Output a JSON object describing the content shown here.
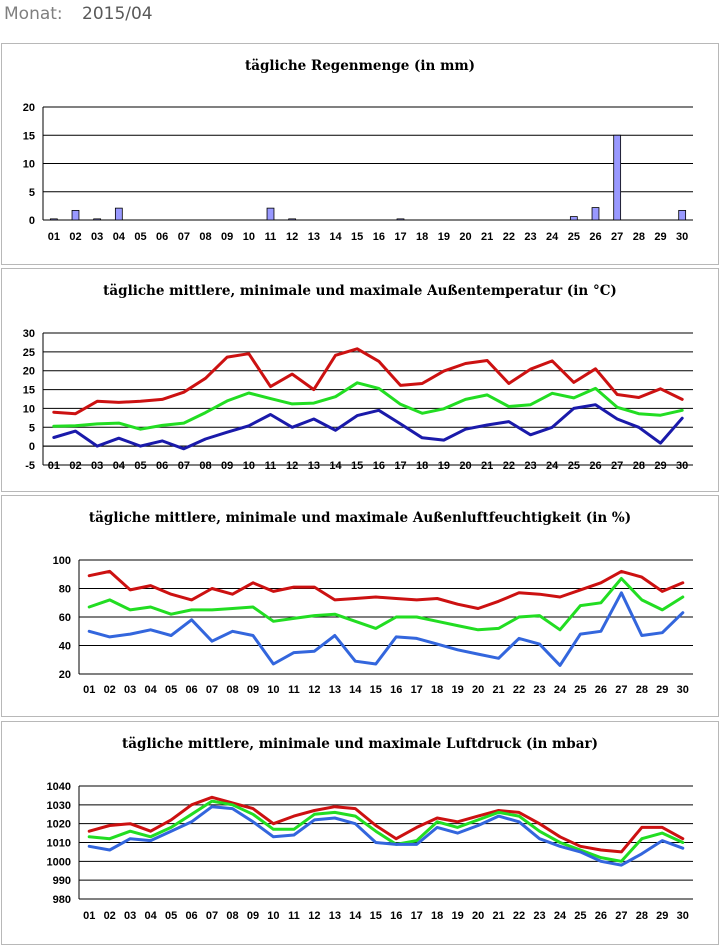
{
  "header": {
    "month_label": "Monat:",
    "month_value": "2015/04"
  },
  "chart_data": [
    {
      "type": "bar",
      "title": "tägliche Regenmenge (in mm)",
      "categories": [
        "01",
        "02",
        "03",
        "04",
        "05",
        "06",
        "07",
        "08",
        "09",
        "10",
        "11",
        "12",
        "13",
        "14",
        "15",
        "16",
        "17",
        "18",
        "19",
        "20",
        "21",
        "22",
        "23",
        "24",
        "25",
        "26",
        "27",
        "28",
        "29",
        "30"
      ],
      "series": [
        {
          "values": [
            0.2,
            1.7,
            0.2,
            2.1,
            0,
            0,
            0,
            0,
            0,
            0,
            2.1,
            0.2,
            0,
            0,
            0,
            0,
            0.2,
            0,
            0,
            0,
            0,
            0,
            0,
            0,
            0.6,
            2.2,
            15.0,
            0,
            0,
            1.7
          ],
          "color": "#9999ff"
        }
      ],
      "ylim": [
        0,
        20
      ],
      "yticks": [
        0,
        5,
        10,
        15,
        20
      ],
      "grid": true
    },
    {
      "type": "line",
      "title": "tägliche mittlere, minimale und maximale Außentemperatur (in °C)",
      "categories": [
        "01",
        "02",
        "03",
        "04",
        "05",
        "06",
        "07",
        "08",
        "09",
        "10",
        "11",
        "12",
        "13",
        "14",
        "15",
        "16",
        "17",
        "18",
        "19",
        "20",
        "21",
        "22",
        "23",
        "24",
        "25",
        "26",
        "27",
        "28",
        "29",
        "30"
      ],
      "series": [
        {
          "values": [
            9.0,
            8.6,
            11.9,
            11.6,
            11.9,
            12.4,
            14.3,
            18.0,
            23.6,
            24.5,
            15.8,
            19.1,
            15.0,
            24.1,
            25.8,
            22.5,
            16.1,
            16.6,
            19.9,
            21.9,
            22.7,
            16.6,
            20.4,
            22.6,
            16.9,
            20.5,
            13.7,
            12.9,
            15.2,
            12.4
          ],
          "color": "#cc1111"
        },
        {
          "values": [
            5.3,
            5.4,
            5.9,
            6.1,
            4.5,
            5.5,
            6.1,
            8.9,
            12.0,
            14.1,
            12.6,
            11.2,
            11.4,
            13.1,
            16.8,
            15.3,
            11.1,
            8.7,
            9.9,
            12.4,
            13.6,
            10.5,
            11.0,
            14.0,
            12.8,
            15.3,
            10.3,
            8.6,
            8.2,
            9.5
          ],
          "color": "#22dd22"
        },
        {
          "values": [
            2.3,
            4.0,
            0.0,
            2.1,
            0.0,
            1.4,
            -0.7,
            1.9,
            3.7,
            5.4,
            8.4,
            5.0,
            7.2,
            4.2,
            8.1,
            9.5,
            5.9,
            2.2,
            1.6,
            4.5,
            5.6,
            6.5,
            3.0,
            5.0,
            10.0,
            11.0,
            7.2,
            5.0,
            0.8,
            7.4
          ],
          "color": "#1a1aaa"
        }
      ],
      "ylim": [
        -5,
        30
      ],
      "yticks": [
        -5,
        0,
        5,
        10,
        15,
        20,
        25,
        30
      ],
      "grid": true
    },
    {
      "type": "line",
      "title": "tägliche mittlere, minimale und maximale Außenluftfeuchtigkeit (in %)",
      "categories": [
        "01",
        "02",
        "03",
        "04",
        "05",
        "06",
        "07",
        "08",
        "09",
        "10",
        "11",
        "12",
        "13",
        "14",
        "15",
        "16",
        "17",
        "18",
        "19",
        "20",
        "21",
        "22",
        "23",
        "24",
        "25",
        "26",
        "27",
        "28",
        "29",
        "30"
      ],
      "series": [
        {
          "values": [
            89,
            92,
            79,
            82,
            76,
            72,
            80,
            76,
            84,
            78,
            81,
            81,
            72,
            73,
            74,
            73,
            72,
            73,
            69,
            66,
            71,
            77,
            76,
            74,
            79,
            84,
            92,
            88,
            78,
            84
          ],
          "color": "#cc1111"
        },
        {
          "values": [
            67,
            72,
            65,
            67,
            62,
            65,
            65,
            66,
            67,
            57,
            59,
            61,
            62,
            57,
            52,
            60,
            60,
            57,
            54,
            51,
            52,
            60,
            61,
            51,
            68,
            70,
            87,
            72,
            65,
            74
          ],
          "color": "#22dd22"
        },
        {
          "values": [
            50,
            46,
            48,
            51,
            47,
            58,
            43,
            50,
            47,
            27,
            35,
            36,
            47,
            29,
            27,
            46,
            45,
            41,
            37,
            34,
            31,
            45,
            41,
            26,
            48,
            50,
            77,
            47,
            49,
            63
          ],
          "color": "#3366dd"
        }
      ],
      "ylim": [
        20,
        100
      ],
      "yticks": [
        20,
        40,
        60,
        80,
        100
      ],
      "grid": true
    },
    {
      "type": "line",
      "title": "tägliche mittlere, minimale und maximale Luftdruck (in mbar)",
      "categories": [
        "01",
        "02",
        "03",
        "04",
        "05",
        "06",
        "07",
        "08",
        "09",
        "10",
        "11",
        "12",
        "13",
        "14",
        "15",
        "16",
        "17",
        "18",
        "19",
        "20",
        "21",
        "22",
        "23",
        "24",
        "25",
        "26",
        "27",
        "28",
        "29",
        "30"
      ],
      "series": [
        {
          "values": [
            1016,
            1019,
            1020,
            1016,
            1022,
            1030,
            1034,
            1031,
            1028,
            1020,
            1024,
            1027,
            1029,
            1028,
            1019,
            1012,
            1018,
            1023,
            1021,
            1024,
            1027,
            1026,
            1020,
            1013,
            1008,
            1006,
            1005,
            1018,
            1018,
            1012
          ],
          "color": "#cc1111"
        },
        {
          "values": [
            1013,
            1012,
            1016,
            1013,
            1018,
            1025,
            1032,
            1030,
            1025,
            1017,
            1017,
            1025,
            1026,
            1024,
            1016,
            1009,
            1011,
            1021,
            1018,
            1022,
            1026,
            1024,
            1016,
            1010,
            1006,
            1002,
            1000,
            1012,
            1015,
            1010
          ],
          "color": "#22dd22"
        },
        {
          "values": [
            1008,
            1006,
            1012,
            1011,
            1016,
            1021,
            1029,
            1028,
            1021,
            1013,
            1014,
            1022,
            1023,
            1020,
            1010,
            1009,
            1009,
            1018,
            1015,
            1019,
            1024,
            1021,
            1012,
            1008,
            1005,
            1000,
            998,
            1004,
            1011,
            1007
          ],
          "color": "#3366dd"
        }
      ],
      "ylim": [
        980,
        1040
      ],
      "yticks": [
        980,
        990,
        1000,
        1010,
        1020,
        1030,
        1040
      ],
      "grid": true
    }
  ]
}
